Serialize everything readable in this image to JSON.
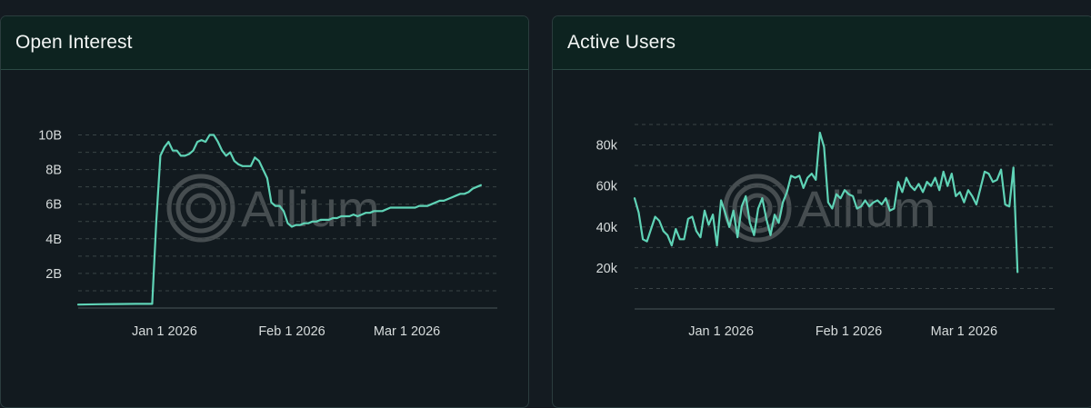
{
  "watermark": "Allium",
  "colors": {
    "line": "#5fd3b6",
    "grid": "#3a4446",
    "axis": "#4b5658"
  },
  "chart_data": [
    {
      "id": "open-interest",
      "title": "Open Interest",
      "type": "line",
      "x_axis": {
        "type": "date",
        "min": "2025-12-11",
        "max": "2026-03-23",
        "ticks": [
          "2026-01-01",
          "2026-02-01",
          "2026-03-01"
        ],
        "tick_labels": [
          "Jan 1 2026",
          "Feb 1 2026",
          "Mar 1 2026"
        ]
      },
      "y_axis": {
        "min": 0,
        "max": 10.5,
        "unit": "B",
        "ticks": [
          2,
          4,
          6,
          8,
          10
        ],
        "tick_labels": [
          "2B",
          "4B",
          "6B",
          "8B",
          "10B"
        ]
      },
      "grid": "horizontal-dashed",
      "series": [
        {
          "points": [
            [
              "2025-12-11",
              0.2
            ],
            [
              "2025-12-16",
              0.22
            ],
            [
              "2025-12-20",
              0.23
            ],
            [
              "2025-12-25",
              0.24
            ],
            [
              "2025-12-29",
              0.24
            ],
            [
              "2025-12-30",
              5.0
            ],
            [
              "2025-12-31",
              8.8
            ],
            [
              "2026-01-01",
              9.3
            ],
            [
              "2026-01-02",
              9.6
            ],
            [
              "2026-01-03",
              9.1
            ],
            [
              "2026-01-04",
              9.1
            ],
            [
              "2026-01-05",
              8.8
            ],
            [
              "2026-01-06",
              8.8
            ],
            [
              "2026-01-07",
              8.9
            ],
            [
              "2026-01-08",
              9.1
            ],
            [
              "2026-01-09",
              9.6
            ],
            [
              "2026-01-10",
              9.7
            ],
            [
              "2026-01-11",
              9.6
            ],
            [
              "2026-01-12",
              10.0
            ],
            [
              "2026-01-13",
              10.0
            ],
            [
              "2026-01-14",
              9.6
            ],
            [
              "2026-01-15",
              9.1
            ],
            [
              "2026-01-16",
              8.8
            ],
            [
              "2026-01-17",
              9.0
            ],
            [
              "2026-01-18",
              8.5
            ],
            [
              "2026-01-19",
              8.3
            ],
            [
              "2026-01-20",
              8.2
            ],
            [
              "2026-01-21",
              8.2
            ],
            [
              "2026-01-22",
              8.2
            ],
            [
              "2026-01-23",
              8.7
            ],
            [
              "2026-01-24",
              8.5
            ],
            [
              "2026-01-25",
              8.0
            ],
            [
              "2026-01-26",
              7.5
            ],
            [
              "2026-01-27",
              6.1
            ],
            [
              "2026-01-28",
              5.9
            ],
            [
              "2026-01-29",
              5.9
            ],
            [
              "2026-01-30",
              5.6
            ],
            [
              "2026-01-31",
              4.9
            ],
            [
              "2026-02-01",
              4.7
            ],
            [
              "2026-02-02",
              4.8
            ],
            [
              "2026-02-03",
              4.8
            ],
            [
              "2026-02-04",
              4.9
            ],
            [
              "2026-02-05",
              4.9
            ],
            [
              "2026-02-06",
              5.0
            ],
            [
              "2026-02-07",
              5.0
            ],
            [
              "2026-02-08",
              5.1
            ],
            [
              "2026-02-09",
              5.1
            ],
            [
              "2026-02-10",
              5.1
            ],
            [
              "2026-02-11",
              5.2
            ],
            [
              "2026-02-12",
              5.2
            ],
            [
              "2026-02-13",
              5.3
            ],
            [
              "2026-02-14",
              5.3
            ],
            [
              "2026-02-15",
              5.3
            ],
            [
              "2026-02-16",
              5.4
            ],
            [
              "2026-02-17",
              5.3
            ],
            [
              "2026-02-18",
              5.4
            ],
            [
              "2026-02-19",
              5.5
            ],
            [
              "2026-02-20",
              5.5
            ],
            [
              "2026-02-21",
              5.6
            ],
            [
              "2026-02-22",
              5.6
            ],
            [
              "2026-02-23",
              5.6
            ],
            [
              "2026-02-24",
              5.7
            ],
            [
              "2026-02-25",
              5.8
            ],
            [
              "2026-02-26",
              5.8
            ],
            [
              "2026-02-27",
              5.8
            ],
            [
              "2026-02-28",
              5.8
            ],
            [
              "2026-03-01",
              5.8
            ],
            [
              "2026-03-02",
              5.8
            ],
            [
              "2026-03-03",
              5.8
            ],
            [
              "2026-03-04",
              5.9
            ],
            [
              "2026-03-05",
              5.9
            ],
            [
              "2026-03-06",
              5.9
            ],
            [
              "2026-03-07",
              6.0
            ],
            [
              "2026-03-08",
              6.1
            ],
            [
              "2026-03-09",
              6.2
            ],
            [
              "2026-03-10",
              6.2
            ],
            [
              "2026-03-11",
              6.3
            ],
            [
              "2026-03-12",
              6.4
            ],
            [
              "2026-03-13",
              6.5
            ],
            [
              "2026-03-14",
              6.6
            ],
            [
              "2026-03-15",
              6.6
            ],
            [
              "2026-03-16",
              6.7
            ],
            [
              "2026-03-17",
              6.9
            ],
            [
              "2026-03-18",
              7.0
            ],
            [
              "2026-03-19",
              7.1
            ]
          ]
        }
      ]
    },
    {
      "id": "active-users",
      "title": "Active Users",
      "type": "line",
      "x_axis": {
        "type": "date",
        "min": "2025-12-11",
        "max": "2026-03-23",
        "ticks": [
          "2026-01-01",
          "2026-02-01",
          "2026-03-01"
        ],
        "tick_labels": [
          "Jan 1 2026",
          "Feb 1 2026",
          "Mar 1 2026"
        ]
      },
      "y_axis": {
        "min": 0,
        "max": 90,
        "unit": "k",
        "ticks": [
          20,
          40,
          60,
          80
        ],
        "tick_labels": [
          "20k",
          "40k",
          "60k",
          "80k"
        ]
      },
      "grid": "horizontal-dashed",
      "series": [
        {
          "points": [
            [
              "2025-12-11",
              54
            ],
            [
              "2025-12-12",
              47
            ],
            [
              "2025-12-13",
              34
            ],
            [
              "2025-12-14",
              33
            ],
            [
              "2025-12-15",
              39
            ],
            [
              "2025-12-16",
              45
            ],
            [
              "2025-12-17",
              43
            ],
            [
              "2025-12-18",
              38
            ],
            [
              "2025-12-19",
              36
            ],
            [
              "2025-12-20",
              31
            ],
            [
              "2025-12-21",
              39
            ],
            [
              "2025-12-22",
              34
            ],
            [
              "2025-12-23",
              34
            ],
            [
              "2025-12-24",
              44
            ],
            [
              "2025-12-25",
              45
            ],
            [
              "2025-12-26",
              38
            ],
            [
              "2025-12-27",
              35
            ],
            [
              "2025-12-28",
              48
            ],
            [
              "2025-12-29",
              41
            ],
            [
              "2025-12-30",
              46
            ],
            [
              "2025-12-31",
              31
            ],
            [
              "2026-01-01",
              53
            ],
            [
              "2026-01-02",
              47
            ],
            [
              "2026-01-03",
              40
            ],
            [
              "2026-01-04",
              48
            ],
            [
              "2026-01-05",
              35
            ],
            [
              "2026-01-06",
              50
            ],
            [
              "2026-01-07",
              55
            ],
            [
              "2026-01-08",
              42
            ],
            [
              "2026-01-09",
              36
            ],
            [
              "2026-01-10",
              49
            ],
            [
              "2026-01-11",
              54
            ],
            [
              "2026-01-12",
              44
            ],
            [
              "2026-01-13",
              36
            ],
            [
              "2026-01-14",
              46
            ],
            [
              "2026-01-15",
              42
            ],
            [
              "2026-01-16",
              52
            ],
            [
              "2026-01-17",
              57
            ],
            [
              "2026-01-18",
              65
            ],
            [
              "2026-01-19",
              64
            ],
            [
              "2026-01-20",
              65
            ],
            [
              "2026-01-21",
              59
            ],
            [
              "2026-01-22",
              64
            ],
            [
              "2026-01-23",
              66
            ],
            [
              "2026-01-24",
              63
            ],
            [
              "2026-01-25",
              86
            ],
            [
              "2026-01-26",
              79
            ],
            [
              "2026-01-27",
              52
            ],
            [
              "2026-01-28",
              49
            ],
            [
              "2026-01-29",
              56
            ],
            [
              "2026-01-30",
              54
            ],
            [
              "2026-01-31",
              58
            ],
            [
              "2026-02-01",
              56
            ],
            [
              "2026-02-02",
              55
            ],
            [
              "2026-02-03",
              49
            ],
            [
              "2026-02-04",
              50
            ],
            [
              "2026-02-05",
              53
            ],
            [
              "2026-02-06",
              50
            ],
            [
              "2026-02-07",
              52
            ],
            [
              "2026-02-08",
              53
            ],
            [
              "2026-02-09",
              51
            ],
            [
              "2026-02-10",
              54
            ],
            [
              "2026-02-11",
              48
            ],
            [
              "2026-02-12",
              49
            ],
            [
              "2026-02-13",
              62
            ],
            [
              "2026-02-14",
              57
            ],
            [
              "2026-02-15",
              64
            ],
            [
              "2026-02-16",
              60
            ],
            [
              "2026-02-17",
              58
            ],
            [
              "2026-02-18",
              61
            ],
            [
              "2026-02-19",
              57
            ],
            [
              "2026-02-20",
              62
            ],
            [
              "2026-02-21",
              60
            ],
            [
              "2026-02-22",
              64
            ],
            [
              "2026-02-23",
              58
            ],
            [
              "2026-02-24",
              67
            ],
            [
              "2026-02-25",
              60
            ],
            [
              "2026-02-26",
              66
            ],
            [
              "2026-02-27",
              55
            ],
            [
              "2026-02-28",
              57
            ],
            [
              "2026-03-01",
              52
            ],
            [
              "2026-03-02",
              58
            ],
            [
              "2026-03-03",
              55
            ],
            [
              "2026-03-04",
              51
            ],
            [
              "2026-03-05",
              59
            ],
            [
              "2026-03-06",
              67
            ],
            [
              "2026-03-07",
              66
            ],
            [
              "2026-03-08",
              62
            ],
            [
              "2026-03-09",
              63
            ],
            [
              "2026-03-10",
              68
            ],
            [
              "2026-03-11",
              51
            ],
            [
              "2026-03-12",
              50
            ],
            [
              "2026-03-13",
              69
            ],
            [
              "2026-03-14",
              18
            ]
          ]
        }
      ]
    }
  ]
}
